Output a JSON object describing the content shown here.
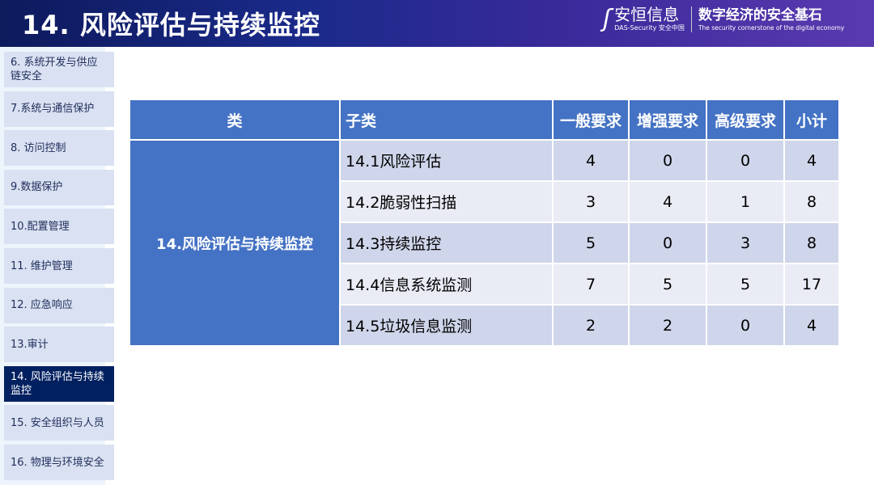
{
  "header": {
    "title": "14. 风险评估与持续监控",
    "logo_cn": "安恒信息",
    "logo_en": "DAS-Security 安全中国",
    "slogan_cn": "数字经济的安全基石",
    "slogan_en": "The security cornerstone of the digital economy"
  },
  "sidebar": {
    "items": [
      {
        "label": "6. 系统开发与供应链安全"
      },
      {
        "label": "7.系统与通信保护"
      },
      {
        "label": "8. 访问控制"
      },
      {
        "label": "9.数据保护"
      },
      {
        "label": "10.配置管理"
      },
      {
        "label": "11. 维护管理"
      },
      {
        "label": "12. 应急响应"
      },
      {
        "label": "13.审计"
      },
      {
        "label": "14. 风险评估与持续监控",
        "active": true
      },
      {
        "label": "15. 安全组织与人员"
      },
      {
        "label": "16. 物理与环境安全"
      }
    ]
  },
  "table": {
    "headers": [
      "类",
      "子类",
      "一般要求",
      "增强要求",
      "高级要求",
      "小计"
    ],
    "category": "14.风险评估与持续监控",
    "rows": [
      {
        "sub": "14.1风险评估",
        "general": "4",
        "enhanced": "0",
        "advanced": "0",
        "total": "4"
      },
      {
        "sub": "14.2脆弱性扫描",
        "general": "3",
        "enhanced": "4",
        "advanced": "1",
        "total": "8"
      },
      {
        "sub": "14.3持续监控",
        "general": "5",
        "enhanced": "0",
        "advanced": "3",
        "total": "8"
      },
      {
        "sub": "14.4信息系统监测",
        "general": "7",
        "enhanced": "5",
        "advanced": "5",
        "total": "17"
      },
      {
        "sub": "14.5垃圾信息监测",
        "general": "2",
        "enhanced": "2",
        "advanced": "0",
        "total": "4"
      }
    ]
  },
  "colors": {
    "header": "#4472c4",
    "row_dark": "#cfd5ea",
    "row_light": "#e9ebf5",
    "sidebar": "#d9e1f2",
    "sidebar_active": "#002060"
  }
}
